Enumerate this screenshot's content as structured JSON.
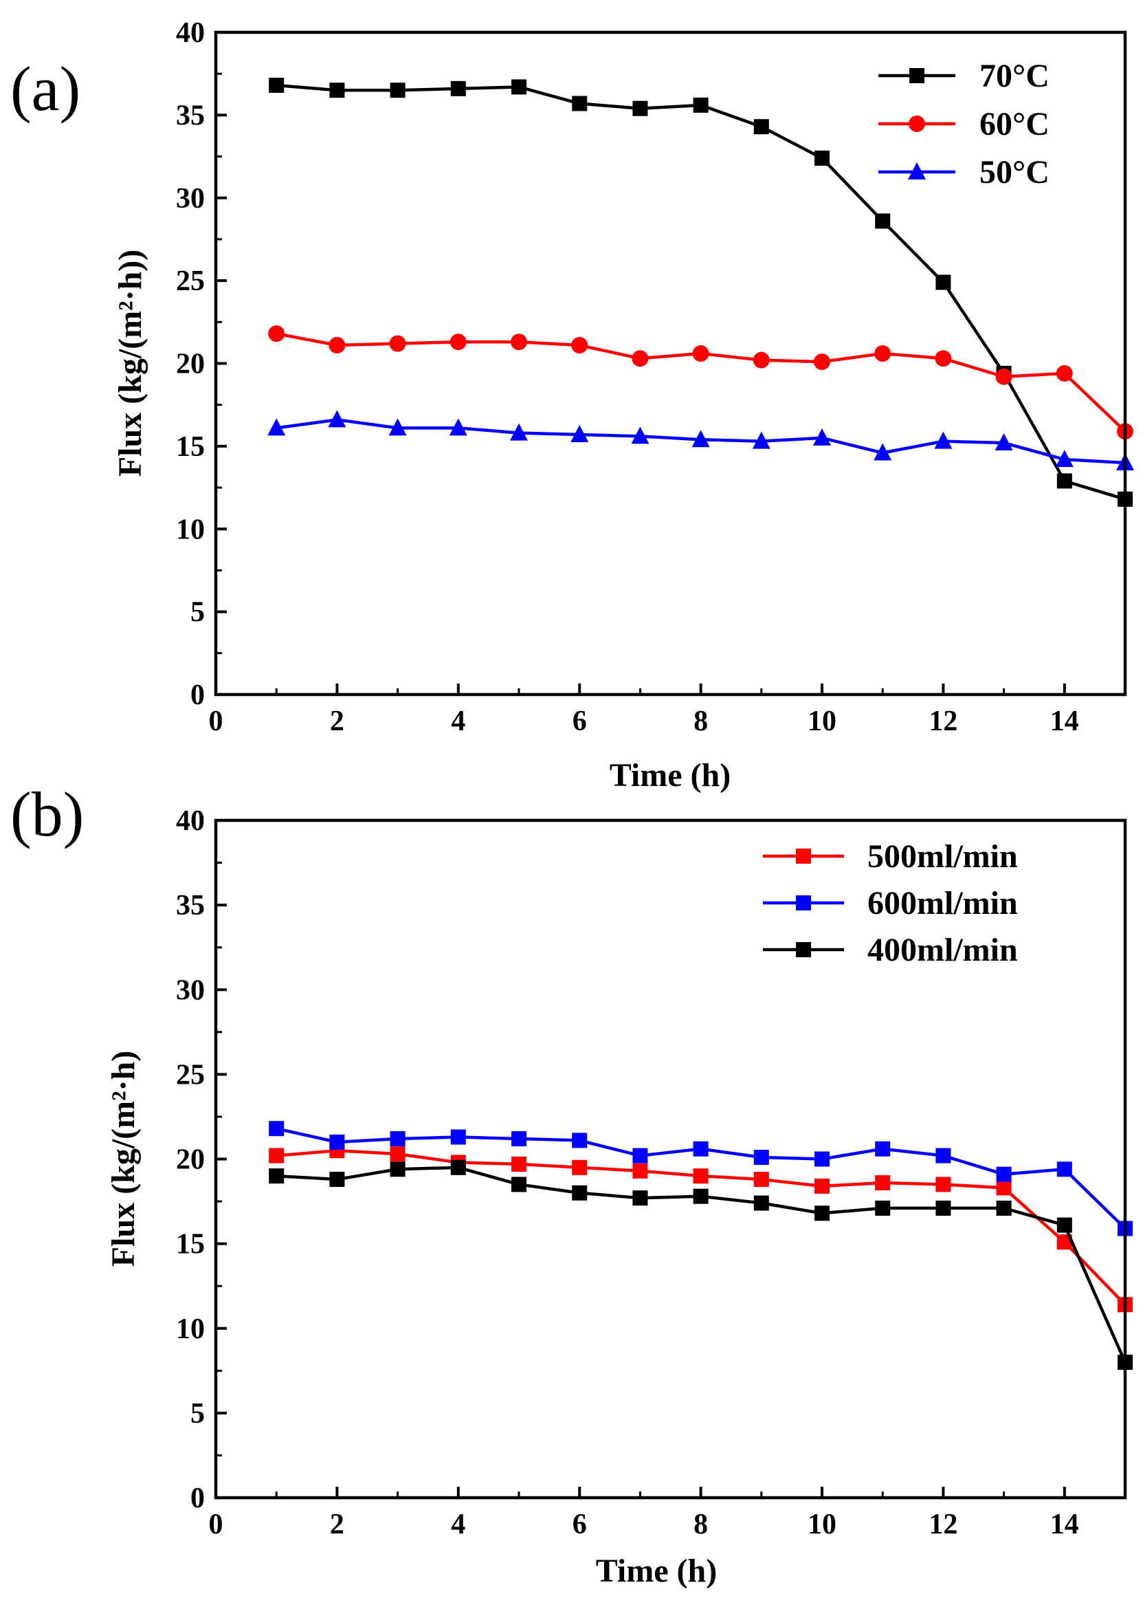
{
  "chart_data": [
    {
      "type": "line",
      "panel_label": "(a)",
      "xlabel": "Time (h)",
      "ylabel": "Flux (kg/(m²·h))",
      "xlim": [
        0,
        15
      ],
      "ylim": [
        0,
        40
      ],
      "xticks": [
        0,
        2,
        4,
        6,
        8,
        10,
        12,
        14
      ],
      "yticks": [
        0,
        5,
        10,
        15,
        20,
        25,
        30,
        35,
        40
      ],
      "xtick_labels": [
        "0",
        "2",
        "4",
        "6",
        "8",
        "10",
        "12",
        "14"
      ],
      "ytick_labels": [
        "0",
        "5",
        "10",
        "15",
        "20",
        "25",
        "30",
        "35",
        "40"
      ],
      "legend_position": "top-right",
      "x": [
        1,
        2,
        3,
        4,
        5,
        6,
        7,
        8,
        9,
        10,
        11,
        12,
        13,
        14,
        15
      ],
      "series": [
        {
          "name": "70°C",
          "color": "#000000",
          "marker": "square",
          "values": [
            36.8,
            36.5,
            36.5,
            36.6,
            36.7,
            35.7,
            35.4,
            35.6,
            34.3,
            32.4,
            28.6,
            24.9,
            19.4,
            12.9,
            11.8
          ]
        },
        {
          "name": "60°C",
          "color": "#ff0000",
          "marker": "circle",
          "values": [
            21.8,
            21.1,
            21.2,
            21.3,
            21.3,
            21.1,
            20.3,
            20.6,
            20.2,
            20.1,
            20.6,
            20.3,
            19.2,
            19.4,
            15.9
          ]
        },
        {
          "name": "50°C",
          "color": "#0000ff",
          "marker": "triangle",
          "values": [
            16.1,
            16.6,
            16.1,
            16.1,
            15.8,
            15.7,
            15.6,
            15.4,
            15.3,
            15.5,
            14.6,
            15.3,
            15.2,
            14.2,
            14.0
          ]
        }
      ]
    },
    {
      "type": "line",
      "panel_label": "(b)",
      "xlabel": "Time (h)",
      "ylabel": "Flux (kg/(m²·h)",
      "xlim": [
        0,
        15
      ],
      "ylim": [
        0,
        40
      ],
      "xticks": [
        0,
        2,
        4,
        6,
        8,
        10,
        12,
        14
      ],
      "yticks": [
        0,
        5,
        10,
        15,
        20,
        25,
        30,
        35,
        40
      ],
      "xtick_labels": [
        "0",
        "2",
        "4",
        "6",
        "8",
        "10",
        "12",
        "14"
      ],
      "ytick_labels": [
        "0",
        "5",
        "10",
        "15",
        "20",
        "25",
        "30",
        "35",
        "40"
      ],
      "legend_position": "top-right",
      "x": [
        1,
        2,
        3,
        4,
        5,
        6,
        7,
        8,
        9,
        10,
        11,
        12,
        13,
        14,
        15
      ],
      "series": [
        {
          "name": "500ml/min",
          "color": "#ff0000",
          "marker": "square",
          "values": [
            20.2,
            20.5,
            20.3,
            19.8,
            19.7,
            19.5,
            19.3,
            19.0,
            18.8,
            18.4,
            18.6,
            18.5,
            18.3,
            15.1,
            11.4
          ]
        },
        {
          "name": "600ml/min",
          "color": "#0000ff",
          "marker": "square",
          "values": [
            21.8,
            21.0,
            21.2,
            21.3,
            21.2,
            21.1,
            20.2,
            20.6,
            20.1,
            20.0,
            20.6,
            20.2,
            19.1,
            19.4,
            15.9
          ]
        },
        {
          "name": "400ml/min",
          "color": "#000000",
          "marker": "square",
          "values": [
            19.0,
            18.8,
            19.4,
            19.5,
            18.5,
            18.0,
            17.7,
            17.8,
            17.4,
            16.8,
            17.1,
            17.1,
            17.1,
            16.1,
            8.0
          ]
        }
      ]
    }
  ]
}
